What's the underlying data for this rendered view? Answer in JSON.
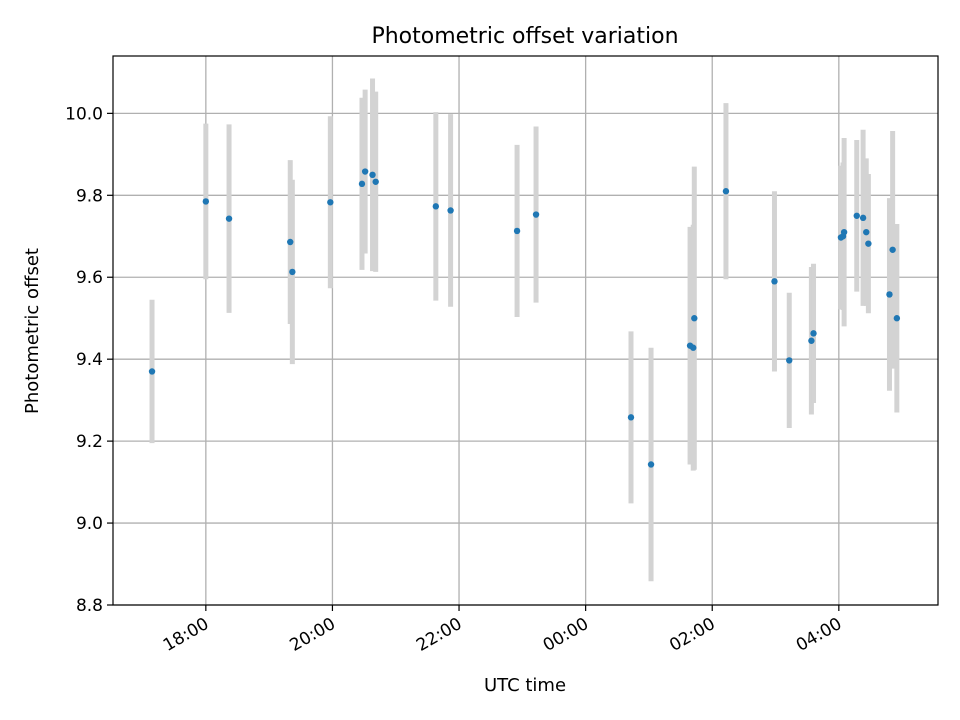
{
  "chart_data": {
    "type": "scatter",
    "title": "Photometric offset variation",
    "xlabel": "UTC time",
    "ylabel": "Photometric offset",
    "x_ticks": [
      "18:00",
      "20:00",
      "22:00",
      "00:00",
      "02:00",
      "04:00"
    ],
    "y_ticks": [
      "8.8",
      "9.0",
      "9.2",
      "9.4",
      "9.6",
      "9.8",
      "10.0"
    ],
    "xlim": [
      "2023-01-01T16:32",
      "2023-01-02T05:34"
    ],
    "ylim": [
      8.8,
      10.14
    ],
    "grid": true,
    "colors": {
      "point": "#1f77b4",
      "errorbar": "#d3d3d3",
      "grid": "#b0b0b0"
    },
    "series": [
      {
        "points": [
          {
            "x": "2023-01-01T17:09",
            "y": 9.37,
            "yerr": 0.175
          },
          {
            "x": "2023-01-01T18:00",
            "y": 9.785,
            "yerr": 0.19
          },
          {
            "x": "2023-01-01T18:22",
            "y": 9.743,
            "yerr": 0.23
          },
          {
            "x": "2023-01-01T19:20",
            "y": 9.686,
            "yerr": 0.2
          },
          {
            "x": "2023-01-01T19:22",
            "y": 9.613,
            "yerr": 0.225
          },
          {
            "x": "2023-01-01T19:58",
            "y": 9.783,
            "yerr": 0.21
          },
          {
            "x": "2023-01-01T20:28",
            "y": 9.828,
            "yerr": 0.21
          },
          {
            "x": "2023-01-01T20:31",
            "y": 9.858,
            "yerr": 0.2
          },
          {
            "x": "2023-01-01T20:38",
            "y": 9.85,
            "yerr": 0.235
          },
          {
            "x": "2023-01-01T20:41",
            "y": 9.833,
            "yerr": 0.22
          },
          {
            "x": "2023-01-01T21:38",
            "y": 9.773,
            "yerr": 0.23
          },
          {
            "x": "2023-01-01T21:52",
            "y": 9.763,
            "yerr": 0.235
          },
          {
            "x": "2023-01-01T22:55",
            "y": 9.713,
            "yerr": 0.21
          },
          {
            "x": "2023-01-01T23:13",
            "y": 9.753,
            "yerr": 0.215
          },
          {
            "x": "2023-01-02T00:43",
            "y": 9.258,
            "yerr": 0.21
          },
          {
            "x": "2023-01-02T01:02",
            "y": 9.143,
            "yerr": 0.285
          },
          {
            "x": "2023-01-02T01:39",
            "y": 9.433,
            "yerr": 0.29
          },
          {
            "x": "2023-01-02T01:42",
            "y": 9.428,
            "yerr": 0.3
          },
          {
            "x": "2023-01-02T01:43",
            "y": 9.5,
            "yerr": 0.37
          },
          {
            "x": "2023-01-02T02:13",
            "y": 9.81,
            "yerr": 0.215
          },
          {
            "x": "2023-01-02T02:59",
            "y": 9.59,
            "yerr": 0.22
          },
          {
            "x": "2023-01-02T03:13",
            "y": 9.397,
            "yerr": 0.165
          },
          {
            "x": "2023-01-02T03:34",
            "y": 9.445,
            "yerr": 0.18
          },
          {
            "x": "2023-01-02T03:36",
            "y": 9.463,
            "yerr": 0.17
          },
          {
            "x": "2023-01-02T04:02",
            "y": 9.697,
            "yerr": 0.175
          },
          {
            "x": "2023-01-02T04:04",
            "y": 9.7,
            "yerr": 0.18
          },
          {
            "x": "2023-01-02T04:05",
            "y": 9.71,
            "yerr": 0.23
          },
          {
            "x": "2023-01-02T04:17",
            "y": 9.75,
            "yerr": 0.185
          },
          {
            "x": "2023-01-02T04:23",
            "y": 9.745,
            "yerr": 0.215
          },
          {
            "x": "2023-01-02T04:26",
            "y": 9.71,
            "yerr": 0.18
          },
          {
            "x": "2023-01-02T04:28",
            "y": 9.682,
            "yerr": 0.17
          },
          {
            "x": "2023-01-02T04:48",
            "y": 9.558,
            "yerr": 0.235
          },
          {
            "x": "2023-01-02T04:51",
            "y": 9.667,
            "yerr": 0.29
          },
          {
            "x": "2023-01-02T04:55",
            "y": 9.5,
            "yerr": 0.23
          }
        ]
      }
    ]
  }
}
